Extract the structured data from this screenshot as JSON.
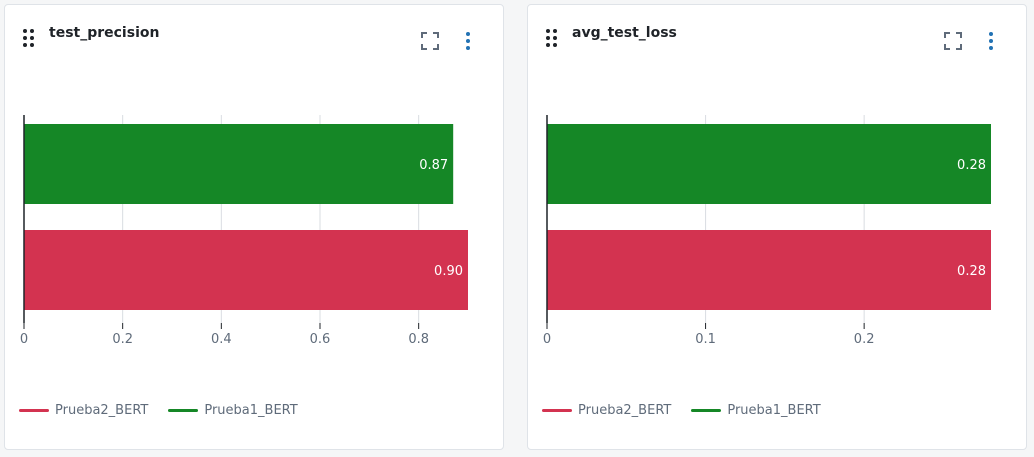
{
  "panels": [
    {
      "title": "test_precision",
      "legend": [
        {
          "name": "Prueba2_BERT",
          "color": "#d33350"
        },
        {
          "name": "Prueba1_BERT",
          "color": "#158726"
        }
      ],
      "chart_data": {
        "type": "bar",
        "orientation": "horizontal",
        "series": [
          {
            "name": "Prueba1_BERT",
            "value": 0.87,
            "label": "0.87",
            "color": "#158726"
          },
          {
            "name": "Prueba2_BERT",
            "value": 0.9,
            "label": "0.90",
            "color": "#d33350"
          }
        ],
        "xticks": [
          0,
          0.2,
          0.4,
          0.6,
          0.8
        ],
        "xtick_labels": [
          "0",
          "0.2",
          "0.4",
          "0.6",
          "0.8"
        ],
        "xlim": [
          0,
          0.9
        ],
        "grid": true,
        "legend_position": "bottom-left"
      }
    },
    {
      "title": "avg_test_loss",
      "legend": [
        {
          "name": "Prueba2_BERT",
          "color": "#d33350"
        },
        {
          "name": "Prueba1_BERT",
          "color": "#158726"
        }
      ],
      "chart_data": {
        "type": "bar",
        "orientation": "horizontal",
        "series": [
          {
            "name": "Prueba1_BERT",
            "value": 0.28,
            "label": "0.28",
            "color": "#158726"
          },
          {
            "name": "Prueba2_BERT",
            "value": 0.28,
            "label": "0.28",
            "color": "#d33350"
          }
        ],
        "xticks": [
          0,
          0.1,
          0.2
        ],
        "xtick_labels": [
          "0",
          "0.1",
          "0.2"
        ],
        "xlim": [
          0,
          0.28
        ],
        "grid": true,
        "legend_position": "bottom-left"
      }
    }
  ]
}
